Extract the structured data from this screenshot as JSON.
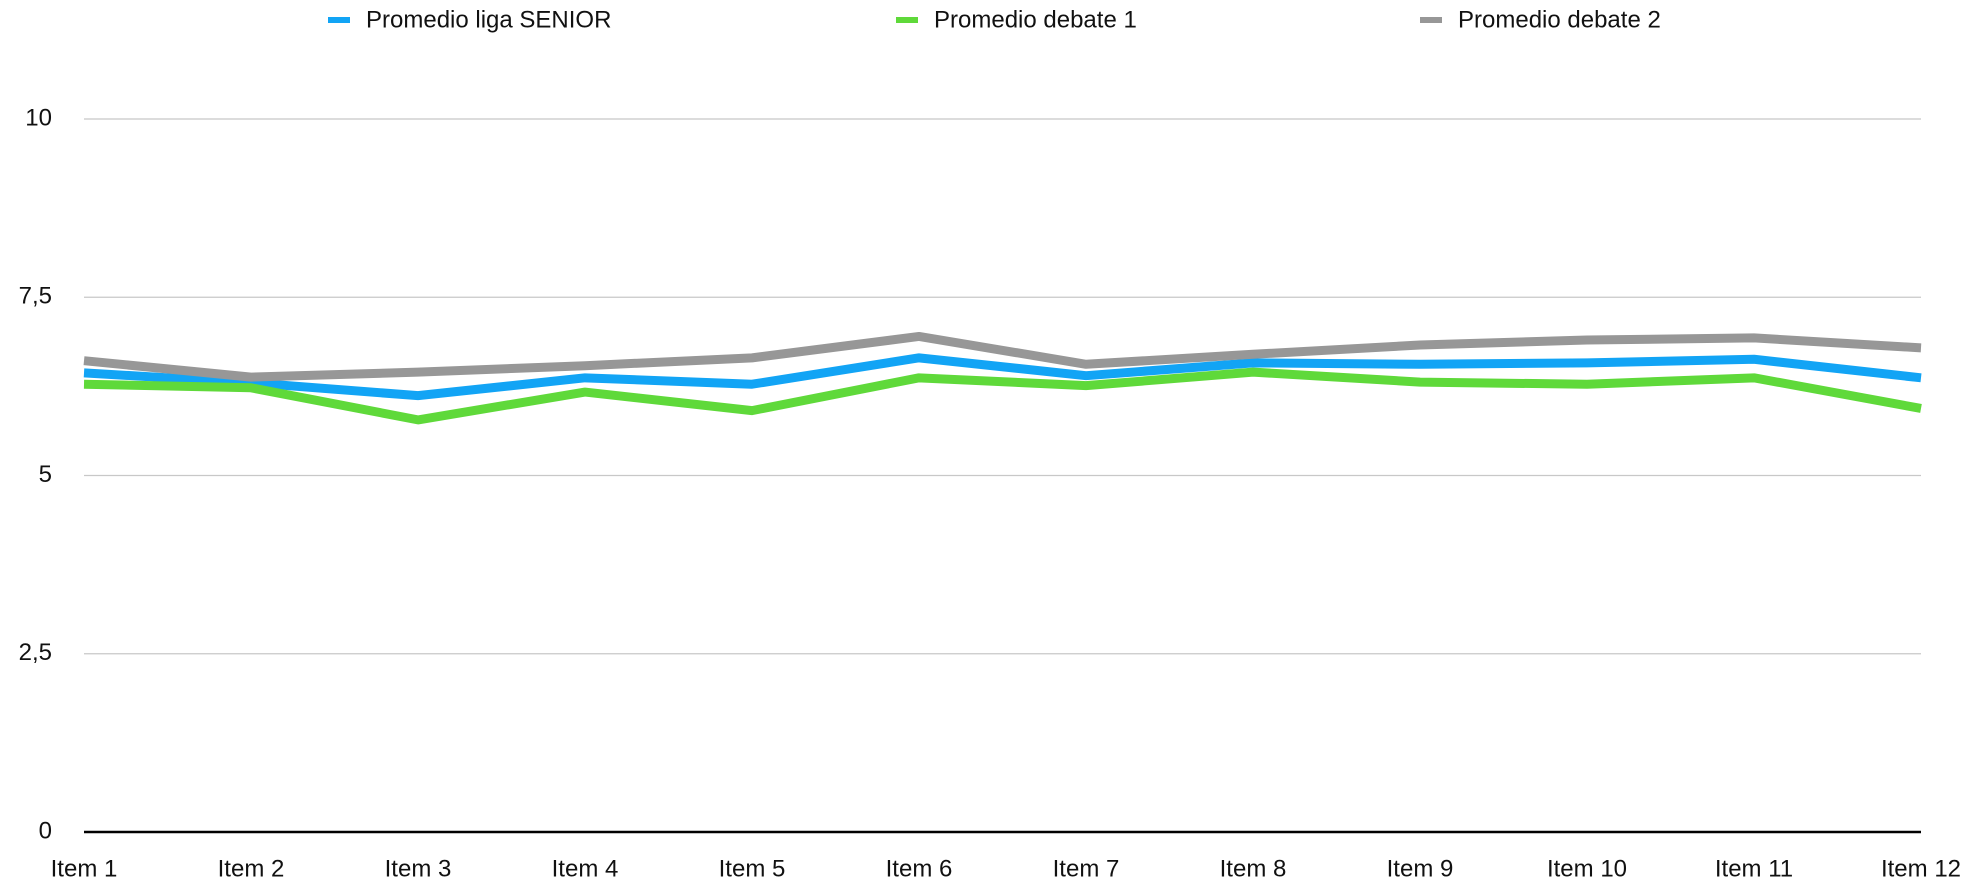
{
  "chart_data": {
    "type": "line",
    "categories": [
      "Item 1",
      "Item 2",
      "Item 3",
      "Item 4",
      "Item 5",
      "Item 6",
      "Item 7",
      "Item 8",
      "Item 9",
      "Item 10",
      "Item 11",
      "Item 12"
    ],
    "series": [
      {
        "name": "Promedio liga SENIOR",
        "color": "#12a4f5",
        "values": [
          6.44,
          6.3,
          6.12,
          6.37,
          6.28,
          6.65,
          6.4,
          6.58,
          6.56,
          6.58,
          6.63,
          6.37
        ]
      },
      {
        "name": "Promedio debate 1",
        "color": "#5fd93a",
        "values": [
          6.28,
          6.23,
          5.78,
          6.17,
          5.91,
          6.37,
          6.26,
          6.45,
          6.31,
          6.28,
          6.37,
          5.94
        ]
      },
      {
        "name": "Promedio debate 2",
        "color": "#979797",
        "values": [
          6.61,
          6.38,
          6.45,
          6.54,
          6.65,
          6.95,
          6.56,
          6.7,
          6.83,
          6.9,
          6.93,
          6.79
        ]
      }
    ],
    "ylim": [
      0,
      10
    ],
    "yticks": [
      0,
      {
        "value": 2.5,
        "label": "2,5"
      },
      5,
      {
        "value": 7.5,
        "label": "7,5"
      },
      10
    ],
    "grid": true,
    "legend": "top"
  }
}
